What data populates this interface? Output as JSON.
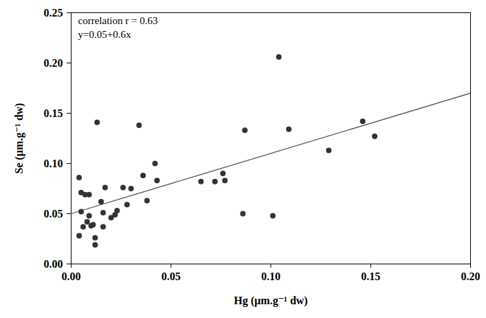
{
  "chart_data": {
    "type": "scatter",
    "x_label": "Hg (µm.g⁻¹ dw)",
    "y_label": "Se (µm.g⁻¹ dw)",
    "annotations": [
      "correlation r = 0.63",
      "y=0.05+0.6x"
    ],
    "color": "#333333",
    "marker": "circle",
    "x": [
      0.004,
      0.005,
      0.005,
      0.007,
      0.006,
      0.009,
      0.008,
      0.009,
      0.01,
      0.011,
      0.012,
      0.012,
      0.004,
      0.013,
      0.015,
      0.016,
      0.016,
      0.017,
      0.02,
      0.022,
      0.023,
      0.026,
      0.028,
      0.03,
      0.034,
      0.036,
      0.038,
      0.042,
      0.043,
      0.065,
      0.072,
      0.076,
      0.077,
      0.086,
      0.087,
      0.101,
      0.104,
      0.109,
      0.129,
      0.146,
      0.152
    ],
    "values": [
      0.086,
      0.071,
      0.052,
      0.069,
      0.037,
      0.069,
      0.042,
      0.048,
      0.038,
      0.039,
      0.026,
      0.019,
      0.028,
      0.141,
      0.062,
      0.051,
      0.037,
      0.076,
      0.046,
      0.049,
      0.053,
      0.076,
      0.059,
      0.075,
      0.138,
      0.088,
      0.063,
      0.1,
      0.083,
      0.082,
      0.082,
      0.09,
      0.083,
      0.05,
      0.133,
      0.048,
      0.206,
      0.134,
      0.113,
      0.142,
      0.127
    ],
    "trend_line": {
      "x": [
        0,
        0.2
      ],
      "values": [
        0.05,
        0.17
      ],
      "color": "#555555",
      "line_style": "solid"
    },
    "xlim": [
      0,
      0.2
    ],
    "ylim": [
      0,
      0.25
    ],
    "xticks": [
      {
        "value": 0,
        "label": "0.00"
      },
      {
        "value": 0.05,
        "label": "0.05"
      },
      {
        "value": 0.1,
        "label": "0.10"
      },
      {
        "value": 0.15,
        "label": "0.15"
      },
      {
        "value": 0.2,
        "label": "0.20"
      }
    ],
    "yticks": [
      {
        "value": 0,
        "label": "0.00"
      },
      {
        "value": 0.05,
        "label": "0.05"
      },
      {
        "value": 0.1,
        "label": "0.10"
      },
      {
        "value": 0.15,
        "label": "0.15"
      },
      {
        "value": 0.2,
        "label": "0.20"
      },
      {
        "value": 0.25,
        "label": "0.25"
      }
    ],
    "grid": false
  }
}
